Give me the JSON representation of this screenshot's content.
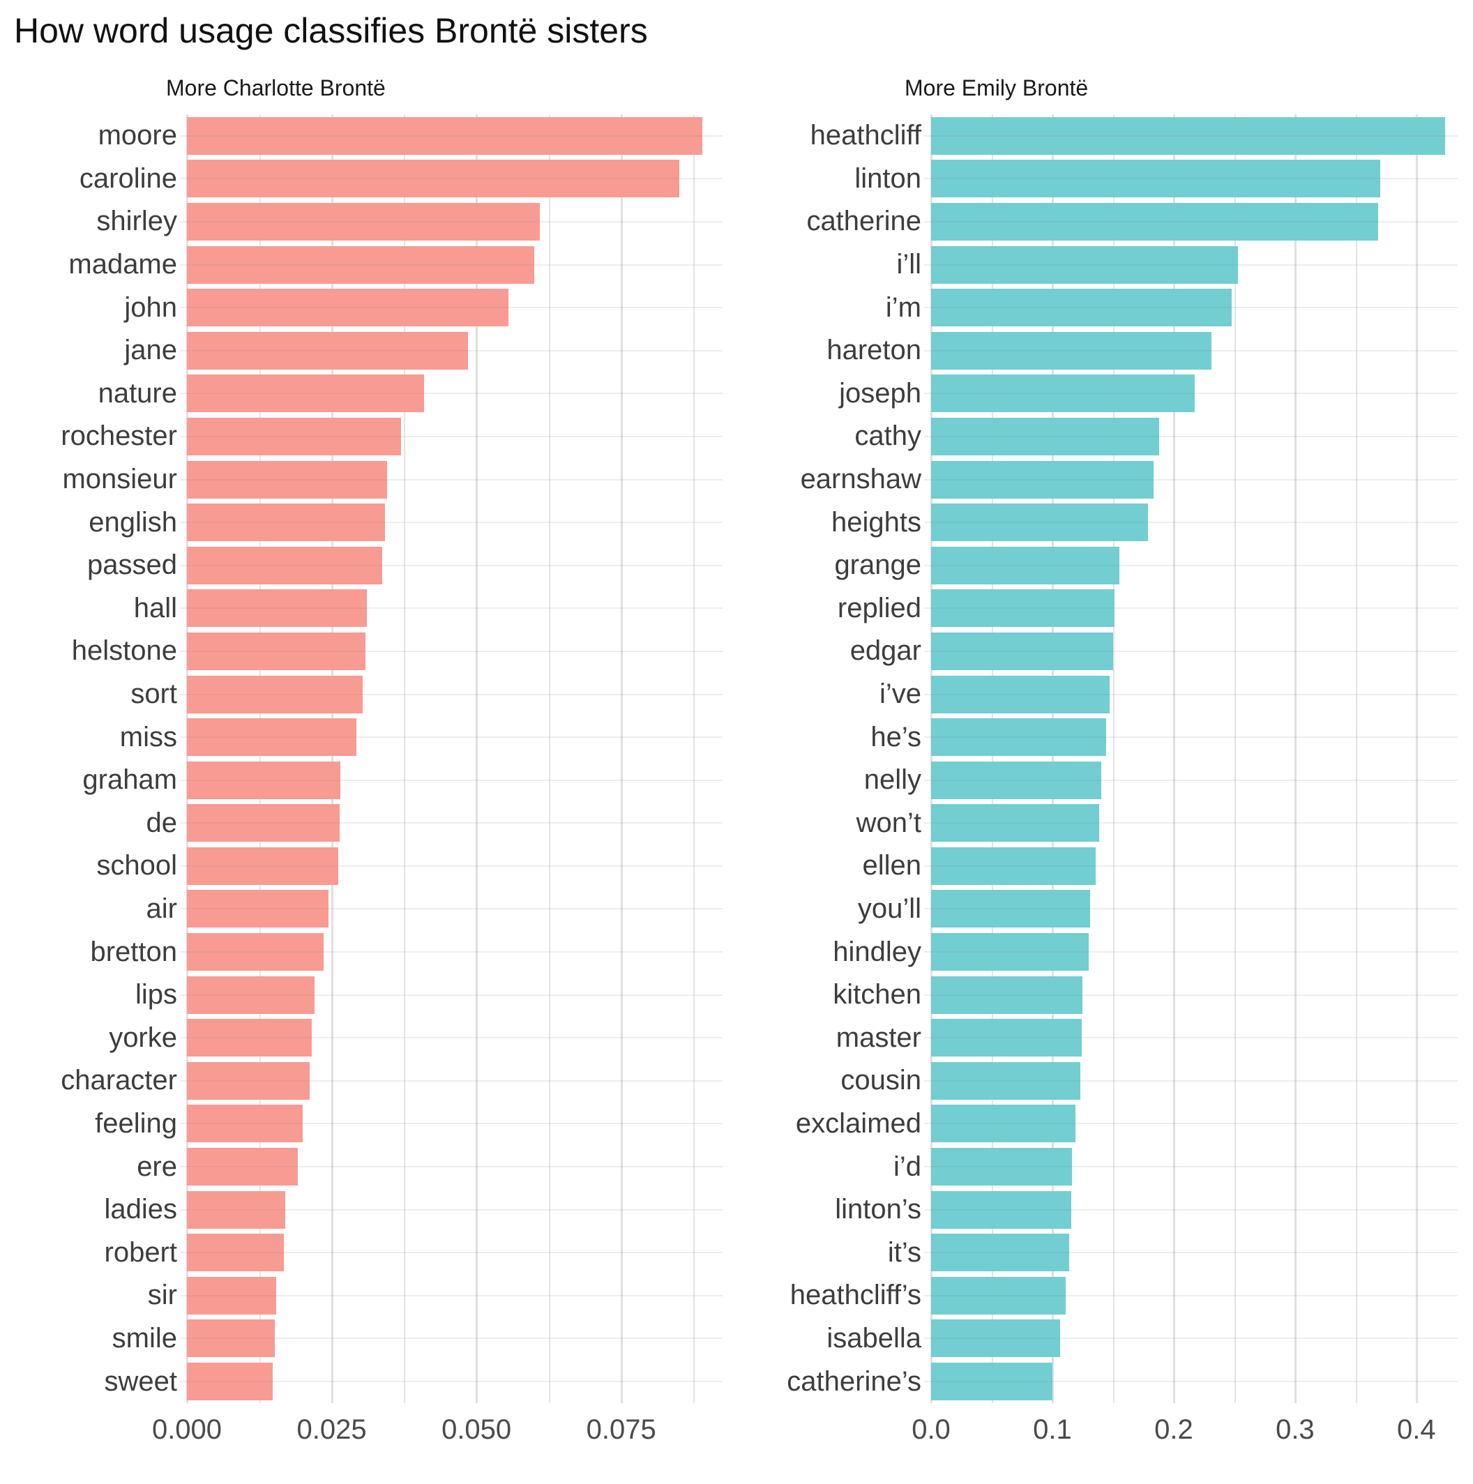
{
  "title": "How word usage classifies Brontë sisters",
  "colors": {
    "charlotte_bar": "#F89B93",
    "emily_bar": "#72CED1",
    "gridline": "#E4E4E4",
    "axis_text": "#4A4A4A",
    "category_text": "#3D3D3D",
    "title_text": "#111111"
  },
  "chart_data": [
    {
      "type": "bar",
      "orientation": "horizontal",
      "panel": "charlotte",
      "subtitle": "More Charlotte Brontë",
      "xlim": [
        0,
        0.0925
      ],
      "grid": true,
      "major_gridlines": [
        0,
        0.025,
        0.05,
        0.075
      ],
      "minor_gridlines": [
        0.0125,
        0.0375,
        0.0625,
        0.0875
      ],
      "ticks": [
        {
          "value": 0,
          "label": "0.000"
        },
        {
          "value": 0.025,
          "label": "0.025"
        },
        {
          "value": 0.05,
          "label": "0.050"
        },
        {
          "value": 0.075,
          "label": "0.075"
        }
      ],
      "categories": [
        "moore",
        "caroline",
        "shirley",
        "madame",
        "john",
        "jane",
        "nature",
        "rochester",
        "monsieur",
        "english",
        "passed",
        "hall",
        "helstone",
        "sort",
        "miss",
        "graham",
        "de",
        "school",
        "air",
        "bretton",
        "lips",
        "yorke",
        "character",
        "feeling",
        "ere",
        "ladies",
        "robert",
        "sir",
        "smile",
        "sweet"
      ],
      "values": [
        0.089,
        0.085,
        0.061,
        0.06,
        0.0555,
        0.0485,
        0.041,
        0.037,
        0.0346,
        0.0342,
        0.0337,
        0.0311,
        0.0308,
        0.0304,
        0.0293,
        0.0265,
        0.0264,
        0.0261,
        0.0245,
        0.0236,
        0.022,
        0.0216,
        0.0212,
        0.02,
        0.0192,
        0.017,
        0.0168,
        0.0154,
        0.0152,
        0.0148
      ]
    },
    {
      "type": "bar",
      "orientation": "horizontal",
      "panel": "emily",
      "subtitle": "More Emily Brontë",
      "xlim": [
        0,
        0.434
      ],
      "grid": true,
      "major_gridlines": [
        0,
        0.1,
        0.2,
        0.3,
        0.4
      ],
      "minor_gridlines": [
        0.05,
        0.15,
        0.25,
        0.35
      ],
      "ticks": [
        {
          "value": 0,
          "label": "0.0"
        },
        {
          "value": 0.1,
          "label": "0.1"
        },
        {
          "value": 0.2,
          "label": "0.2"
        },
        {
          "value": 0.3,
          "label": "0.3"
        },
        {
          "value": 0.4,
          "label": "0.4"
        }
      ],
      "categories": [
        "heathcliff",
        "linton",
        "catherine",
        "i’ll",
        "i’m",
        "hareton",
        "joseph",
        "cathy",
        "earnshaw",
        "heights",
        "grange",
        "replied",
        "edgar",
        "i’ve",
        "he’s",
        "nelly",
        "won’t",
        "ellen",
        "you’ll",
        "hindley",
        "kitchen",
        "master",
        "cousin",
        "exclaimed",
        "i’d",
        "linton’s",
        "it’s",
        "heathcliff’s",
        "isabella",
        "catherine’s"
      ],
      "values": [
        0.4235,
        0.37,
        0.3685,
        0.253,
        0.248,
        0.231,
        0.217,
        0.188,
        0.1835,
        0.179,
        0.155,
        0.151,
        0.15,
        0.147,
        0.144,
        0.1405,
        0.1385,
        0.1355,
        0.131,
        0.13,
        0.125,
        0.124,
        0.123,
        0.119,
        0.116,
        0.1155,
        0.114,
        0.111,
        0.1065,
        0.1
      ]
    }
  ]
}
